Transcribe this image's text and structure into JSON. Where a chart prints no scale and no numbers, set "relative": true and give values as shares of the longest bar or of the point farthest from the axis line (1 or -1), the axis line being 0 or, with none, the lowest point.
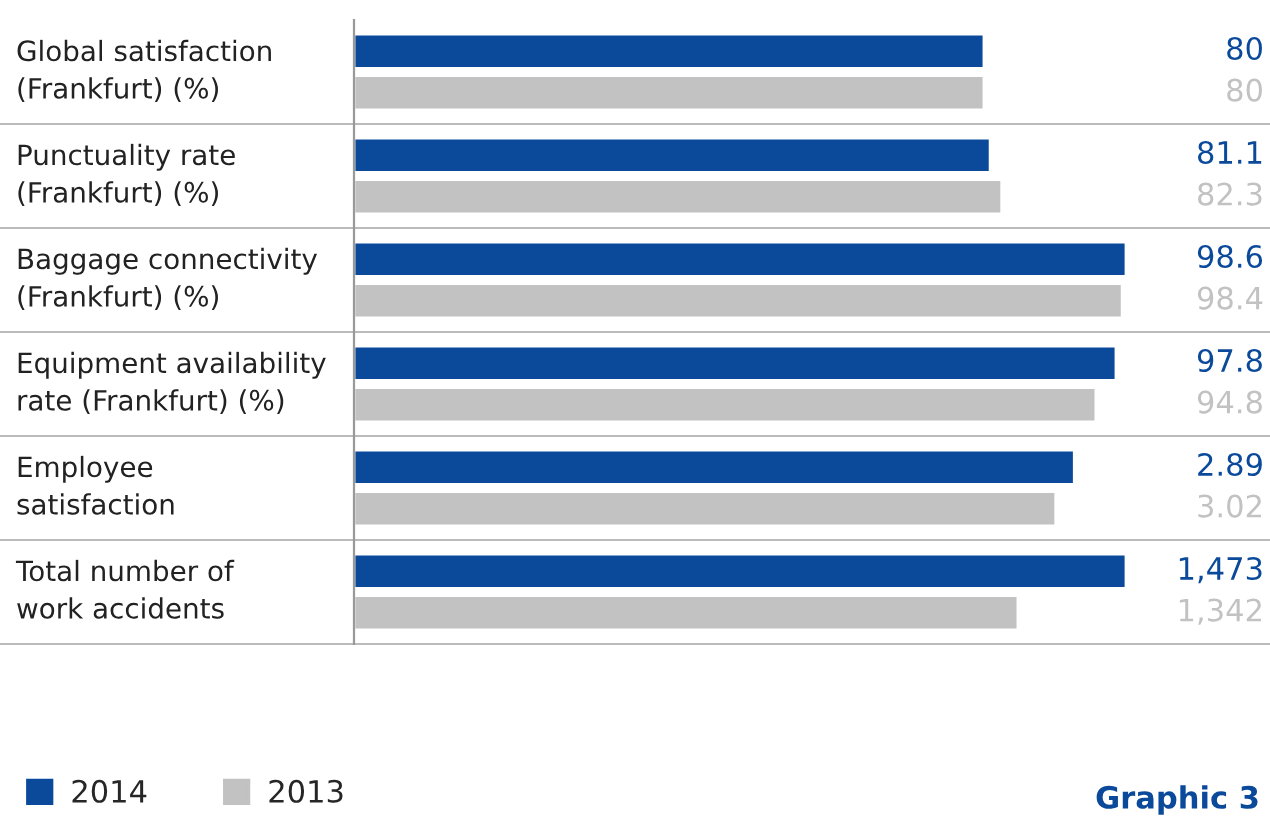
{
  "chart_data": {
    "type": "bar",
    "orientation": "horizontal",
    "relative": true,
    "categories": [
      "Global satisfaction\n(Frankfurt) (%)",
      "Punctuality rate\n(Frankfurt) (%)",
      "Baggage connectivity\n(Frankfurt) (%)",
      "Equipment availability\nrate (Frankfurt) (%)",
      "Employee\nsatisfaction",
      "Total number of\nwork accidents"
    ],
    "series": [
      {
        "name": "2014",
        "color": "#0b4a9b",
        "values": [
          0.816,
          0.824,
          1.0,
          0.987,
          0.933,
          1.0
        ]
      },
      {
        "name": "2013",
        "color": "#c2c2c2",
        "values": [
          0.816,
          0.839,
          0.995,
          0.961,
          0.909,
          0.86
        ]
      }
    ],
    "grid": "y",
    "legend": "bottom left",
    "tick_labels": "y",
    "annotations": [
      "80",
      "80",
      "81.1",
      "82.3",
      "98.6",
      "98.4",
      "97.8",
      "94.8",
      "2.89",
      "3.02",
      "1,473",
      "1,342",
      "Graphic 3"
    ]
  }
}
